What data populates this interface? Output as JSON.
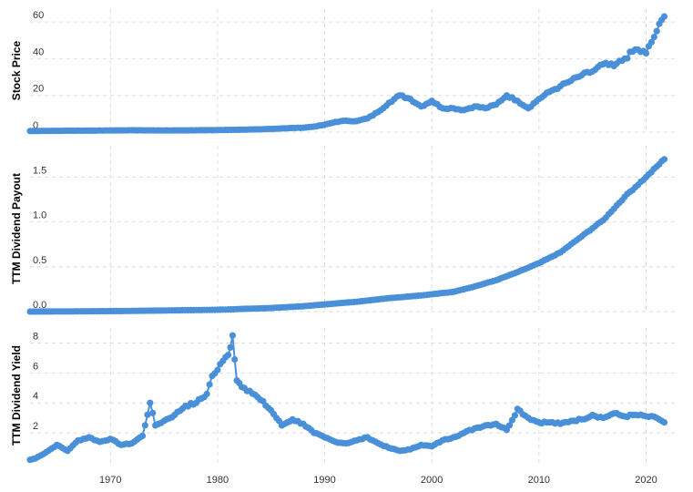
{
  "chart_data": [
    {
      "type": "line",
      "ylabel": "Stock Price",
      "ylim": [
        0,
        67
      ],
      "yticks": [
        0,
        20,
        40,
        60
      ],
      "ytick_labels": [
        "0",
        "20",
        "40",
        "60"
      ],
      "grid": true,
      "series": [
        {
          "color": "#4a90d9",
          "points": [
            [
              1962.5,
              0.6
            ],
            [
              1965,
              0.7
            ],
            [
              1968,
              0.8
            ],
            [
              1970,
              0.9
            ],
            [
              1972,
              1.0
            ],
            [
              1975,
              0.9
            ],
            [
              1978,
              1.0
            ],
            [
              1980,
              1.1
            ],
            [
              1982,
              1.3
            ],
            [
              1984,
              1.5
            ],
            [
              1986,
              2.0
            ],
            [
              1988,
              2.4
            ],
            [
              1989,
              3.0
            ],
            [
              1990,
              4.0
            ],
            [
              1991,
              5.5
            ],
            [
              1992,
              6.2
            ],
            [
              1993,
              6.0
            ],
            [
              1994,
              7.5
            ],
            [
              1995,
              11
            ],
            [
              1996,
              16
            ],
            [
              1997,
              20
            ],
            [
              1998,
              18
            ],
            [
              1999,
              14
            ],
            [
              2000,
              17
            ],
            [
              2001,
              13
            ],
            [
              2002,
              13
            ],
            [
              2003,
              12
            ],
            [
              2004,
              14
            ],
            [
              2005,
              13
            ],
            [
              2006,
              15
            ],
            [
              2007,
              20
            ],
            [
              2008,
              17
            ],
            [
              2009,
              13
            ],
            [
              2010,
              18
            ],
            [
              2011,
              22
            ],
            [
              2012,
              25
            ],
            [
              2013,
              28
            ],
            [
              2014,
              31
            ],
            [
              2015,
              33
            ],
            [
              2016,
              37
            ],
            [
              2017,
              36
            ],
            [
              2018,
              40
            ],
            [
              2019,
              45
            ],
            [
              2020,
              43
            ],
            [
              2021,
              55
            ],
            [
              2021.7,
              63
            ]
          ]
        }
      ]
    },
    {
      "type": "line",
      "ylabel": "TTM Dividend Payout",
      "ylim": [
        0,
        1.85
      ],
      "yticks": [
        0,
        0.5,
        1.0,
        1.5
      ],
      "ytick_labels": [
        "0.0",
        "0.5",
        "1.0",
        "1.5"
      ],
      "grid": true,
      "series": [
        {
          "color": "#4a90d9",
          "points": [
            [
              1962.5,
              0.0
            ],
            [
              1970,
              0.005
            ],
            [
              1975,
              0.012
            ],
            [
              1980,
              0.02
            ],
            [
              1985,
              0.04
            ],
            [
              1988,
              0.06
            ],
            [
              1990,
              0.08
            ],
            [
              1993,
              0.11
            ],
            [
              1996,
              0.15
            ],
            [
              1999,
              0.18
            ],
            [
              2002,
              0.22
            ],
            [
              2004,
              0.28
            ],
            [
              2006,
              0.35
            ],
            [
              2008,
              0.44
            ],
            [
              2010,
              0.54
            ],
            [
              2012,
              0.66
            ],
            [
              2014,
              0.84
            ],
            [
              2016,
              1.02
            ],
            [
              2018,
              1.28
            ],
            [
              2020,
              1.5
            ],
            [
              2021.7,
              1.7
            ]
          ]
        }
      ]
    },
    {
      "type": "line",
      "ylabel": "TTM Dividend Yield",
      "xlim": [
        1962.5,
        2022
      ],
      "ylim": [
        0,
        9
      ],
      "yticks": [
        2,
        4,
        6,
        8
      ],
      "ytick_labels": [
        "2",
        "4",
        "6",
        "8"
      ],
      "xticks": [
        1970,
        1980,
        1990,
        2000,
        2010,
        2020
      ],
      "xtick_labels": [
        "1970",
        "1980",
        "1990",
        "2000",
        "2010",
        "2020"
      ],
      "grid": true,
      "series": [
        {
          "color": "#4a90d9",
          "points": [
            [
              1962.5,
              0.2
            ],
            [
              1963,
              0.3
            ],
            [
              1964,
              0.7
            ],
            [
              1965,
              1.2
            ],
            [
              1966,
              0.8
            ],
            [
              1967,
              1.5
            ],
            [
              1968,
              1.7
            ],
            [
              1969,
              1.4
            ],
            [
              1970,
              1.6
            ],
            [
              1971,
              1.2
            ],
            [
              1972,
              1.3
            ],
            [
              1973,
              1.8
            ],
            [
              1973.7,
              4.0
            ],
            [
              1974.2,
              2.5
            ],
            [
              1975,
              2.8
            ],
            [
              1976,
              3.2
            ],
            [
              1977,
              3.8
            ],
            [
              1978,
              4.0
            ],
            [
              1979,
              4.6
            ],
            [
              1979.5,
              5.8
            ],
            [
              1980,
              6.2
            ],
            [
              1980.5,
              6.8
            ],
            [
              1981,
              7.2
            ],
            [
              1981.4,
              8.5
            ],
            [
              1981.8,
              5.5
            ],
            [
              1982.5,
              5.0
            ],
            [
              1983,
              4.8
            ],
            [
              1984,
              4.2
            ],
            [
              1985,
              3.5
            ],
            [
              1986,
              2.5
            ],
            [
              1987,
              2.9
            ],
            [
              1988,
              2.6
            ],
            [
              1989,
              2.0
            ],
            [
              1990,
              1.7
            ],
            [
              1991,
              1.4
            ],
            [
              1992,
              1.3
            ],
            [
              1993,
              1.5
            ],
            [
              1994,
              1.7
            ],
            [
              1995,
              1.3
            ],
            [
              1996,
              1.0
            ],
            [
              1997,
              0.8
            ],
            [
              1998,
              0.9
            ],
            [
              1999,
              1.2
            ],
            [
              2000,
              1.1
            ],
            [
              2001,
              1.5
            ],
            [
              2002,
              1.7
            ],
            [
              2003,
              2.0
            ],
            [
              2004,
              2.3
            ],
            [
              2005,
              2.5
            ],
            [
              2006,
              2.6
            ],
            [
              2007,
              2.2
            ],
            [
              2008,
              3.6
            ],
            [
              2009,
              3.0
            ],
            [
              2010,
              2.7
            ],
            [
              2011,
              2.7
            ],
            [
              2012,
              2.6
            ],
            [
              2013,
              2.8
            ],
            [
              2014,
              2.9
            ],
            [
              2015,
              3.2
            ],
            [
              2016,
              3.0
            ],
            [
              2017,
              3.3
            ],
            [
              2018,
              3.1
            ],
            [
              2019,
              3.2
            ],
            [
              2020,
              3.1
            ],
            [
              2021,
              3.0
            ],
            [
              2021.7,
              2.7
            ]
          ]
        }
      ]
    }
  ]
}
